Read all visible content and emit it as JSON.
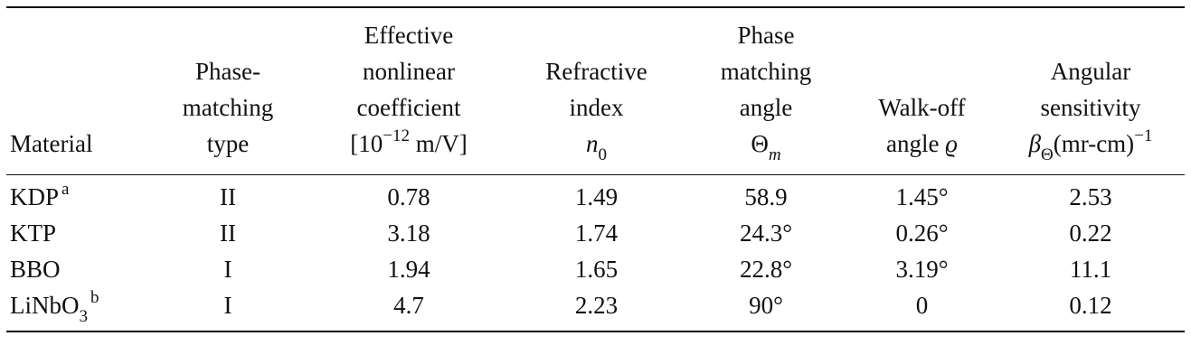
{
  "headers": {
    "material": [
      "Material"
    ],
    "phase_matching_type": [
      "Phase-",
      "matching",
      "type"
    ],
    "effective_coefficient": [
      "Effective",
      "nonlinear",
      "coefficient",
      "[10−12 m/V]"
    ],
    "refractive_index": [
      "Refractive",
      "index",
      "n0"
    ],
    "phase_matching_angle": [
      "Phase",
      "matching",
      "angle",
      "Θm"
    ],
    "walk_off_angle": [
      "Walk-off",
      "angle ϱ"
    ],
    "angular_sensitivity": [
      "Angular",
      "sensitivity",
      "βΘ(mr-cm)−1"
    ]
  },
  "rows": [
    {
      "material": "KDP",
      "note": "a",
      "type": "II",
      "coefficient": "0.78",
      "index": "1.49",
      "angle": "58.9",
      "walk_off": "1.45°",
      "sensitivity": "2.53"
    },
    {
      "material": "KTP",
      "note": "",
      "type": "II",
      "coefficient": "3.18",
      "index": "1.74",
      "angle": "24.3°",
      "walk_off": "0.26°",
      "sensitivity": "0.22"
    },
    {
      "material": "BBO",
      "note": "",
      "type": "I",
      "coefficient": "1.94",
      "index": "1.65",
      "angle": "22.8°",
      "walk_off": "3.19°",
      "sensitivity": "11.1"
    },
    {
      "material": "LiNbO",
      "material_sub": "3",
      "note": "b",
      "type": "I",
      "coefficient": "4.7",
      "index": "2.23",
      "angle": "90°",
      "walk_off": "0",
      "sensitivity": "0.12"
    }
  ]
}
